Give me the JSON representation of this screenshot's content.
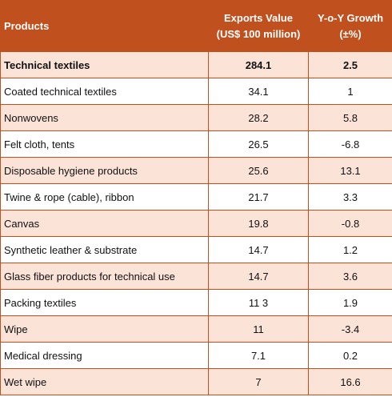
{
  "table": {
    "headers": {
      "products": "Products",
      "exports_line1": "Exports Value",
      "exports_line2": "(US$ 100 million)",
      "growth_line1": "Y-o-Y Growth",
      "growth_line2": "(±%)"
    },
    "rows": [
      {
        "product": "Technical textiles",
        "exports": "284.1",
        "growth": "2.5"
      },
      {
        "product": "Coated technical textiles",
        "exports": "34.1",
        "growth": "1"
      },
      {
        "product": "Nonwovens",
        "exports": "28.2",
        "growth": "5.8"
      },
      {
        "product": "Felt cloth, tents",
        "exports": "26.5",
        "growth": "-6.8"
      },
      {
        "product": "Disposable hygiene products",
        "exports": "25.6",
        "growth": "13.1"
      },
      {
        "product": "Twine & rope (cable), ribbon",
        "exports": "21.7",
        "growth": "3.3"
      },
      {
        "product": "Canvas",
        "exports": "19.8",
        "growth": "-0.8"
      },
      {
        "product": "Synthetic leather & substrate",
        "exports": "14.7",
        "growth": "1.2"
      },
      {
        "product": "Glass fiber products for technical use",
        "exports": "14.7",
        "growth": "3.6"
      },
      {
        "product": "Packing textiles",
        "exports": "11 3",
        "growth": "1.9"
      },
      {
        "product": "Wipe",
        "exports": "11",
        "growth": "-3.4"
      },
      {
        "product": "Medical dressing",
        "exports": "7.1",
        "growth": "0.2"
      },
      {
        "product": "Wet wipe",
        "exports": "7",
        "growth": "16.6"
      }
    ]
  },
  "colors": {
    "header_bg": "#c0501e",
    "header_text": "#ffffff",
    "row_alt_bg": "#fbe3d8",
    "row_plain_bg": "#ffffff",
    "border": "#c0501e"
  }
}
